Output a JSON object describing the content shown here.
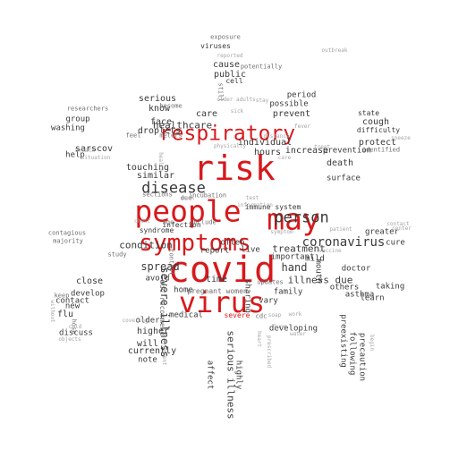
{
  "cloud": {
    "words": [
      {
        "text": "covid",
        "color": "red"
      },
      {
        "text": "virus",
        "color": "red"
      },
      {
        "text": "people",
        "color": "red"
      },
      {
        "text": "may",
        "color": "red"
      },
      {
        "text": "risk",
        "color": "red"
      },
      {
        "text": "symptoms",
        "color": "red"
      },
      {
        "text": "respiratory",
        "color": "red"
      },
      {
        "text": "disease",
        "color": "dark"
      },
      {
        "text": "person",
        "color": "dark"
      },
      {
        "text": "coronavirus",
        "color": "dark"
      },
      {
        "text": "spread",
        "color": "dark"
      },
      {
        "text": "severe illness",
        "color": "dark"
      },
      {
        "text": "serious illness",
        "color": "dark"
      },
      {
        "text": "healthcare",
        "color": "dark"
      },
      {
        "text": "condition",
        "color": "dark"
      },
      {
        "text": "hand",
        "color": "dark"
      },
      {
        "text": "illness due",
        "color": "dark"
      },
      {
        "text": "treatment",
        "color": "dark"
      },
      {
        "text": "prevent",
        "color": "dark"
      },
      {
        "text": "cough",
        "color": "dark"
      },
      {
        "text": "protect",
        "color": "dark"
      },
      {
        "text": "sarscov",
        "color": "dark"
      },
      {
        "text": "cause",
        "color": "dark"
      },
      {
        "text": "public",
        "color": "dark"
      },
      {
        "text": "care",
        "color": "dark"
      },
      {
        "text": "face",
        "color": "dark"
      },
      {
        "text": "touching",
        "color": "dark"
      },
      {
        "text": "close",
        "color": "dark"
      },
      {
        "text": "flu",
        "color": "dark"
      },
      {
        "text": "higher",
        "color": "dark"
      },
      {
        "text": "will",
        "color": "dark"
      },
      {
        "text": "currently",
        "color": "dark"
      },
      {
        "text": "time",
        "color": "dark"
      },
      {
        "text": "hours",
        "color": "dark"
      },
      {
        "text": "increase",
        "color": "dark"
      },
      {
        "text": "death",
        "color": "dark"
      },
      {
        "text": "individual",
        "color": "dark"
      },
      {
        "text": "droplets",
        "color": "dark"
      },
      {
        "text": "similar",
        "color": "dark"
      },
      {
        "text": "serious",
        "color": "dark"
      },
      {
        "text": "know",
        "color": "dark"
      },
      {
        "text": "period",
        "color": "dark"
      },
      {
        "text": "possible",
        "color": "dark"
      },
      {
        "text": "prevention",
        "color": "dark"
      },
      {
        "text": "surface",
        "color": "dark"
      },
      {
        "text": "important",
        "color": "dark"
      },
      {
        "text": "mild",
        "color": "dark"
      },
      {
        "text": "doctor",
        "color": "dark"
      },
      {
        "text": "others",
        "color": "dark"
      },
      {
        "text": "asthma",
        "color": "dark"
      },
      {
        "text": "greater",
        "color": "dark"
      },
      {
        "text": "cure",
        "color": "dark"
      },
      {
        "text": "taking",
        "color": "dark"
      },
      {
        "text": "learn",
        "color": "dark"
      },
      {
        "text": "develop",
        "color": "dark"
      },
      {
        "text": "group",
        "color": "dark"
      },
      {
        "text": "washing",
        "color": "dark"
      },
      {
        "text": "help",
        "color": "dark"
      },
      {
        "text": "contact",
        "color": "dark"
      },
      {
        "text": "new",
        "color": "dark"
      },
      {
        "text": "discuss",
        "color": "dark"
      },
      {
        "text": "older",
        "color": "dark"
      },
      {
        "text": "note",
        "color": "dark"
      },
      {
        "text": "affect",
        "color": "dark"
      },
      {
        "text": "highly",
        "color": "dark"
      },
      {
        "text": "developing",
        "color": "dark"
      },
      {
        "text": "preexisting",
        "color": "dark"
      },
      {
        "text": "following",
        "color": "dark"
      },
      {
        "text": "precaution",
        "color": "dark"
      },
      {
        "text": "family",
        "color": "dark"
      },
      {
        "text": "vary",
        "color": "dark"
      },
      {
        "text": "mouth",
        "color": "dark"
      },
      {
        "text": "sharing",
        "color": "dark"
      },
      {
        "text": "report",
        "color": "dark"
      },
      {
        "text": "live",
        "color": "dark"
      },
      {
        "text": "often",
        "color": "dark"
      },
      {
        "text": "home",
        "color": "dark"
      },
      {
        "text": "avoid",
        "color": "dark"
      },
      {
        "text": "medical",
        "color": "dark"
      },
      {
        "text": "syndrome",
        "color": "dark"
      },
      {
        "text": "infection",
        "color": "dark"
      },
      {
        "text": "state",
        "color": "dark"
      },
      {
        "text": "difficulty",
        "color": "dark"
      },
      {
        "text": "viruses",
        "color": "dark"
      },
      {
        "text": "cell",
        "color": "dark"
      },
      {
        "text": "exposure",
        "color": "mid"
      },
      {
        "text": "immune system",
        "color": "dark"
      },
      {
        "text": "pregnant women",
        "color": "mid"
      },
      {
        "text": "updates",
        "color": "mid"
      },
      {
        "text": "cdc recommend",
        "color": "mid"
      },
      {
        "text": "control",
        "color": "mid"
      },
      {
        "text": "study",
        "color": "mid"
      },
      {
        "text": "sections",
        "color": "mid"
      },
      {
        "text": "incubation",
        "color": "mid"
      },
      {
        "text": "age",
        "color": "mid"
      },
      {
        "text": "include",
        "color": "mid"
      },
      {
        "text": "become",
        "color": "mid"
      },
      {
        "text": "feel",
        "color": "mid"
      },
      {
        "text": "meters",
        "color": "mid"
      },
      {
        "text": "researchers",
        "color": "mid"
      },
      {
        "text": "contagious",
        "color": "mid"
      },
      {
        "text": "majority",
        "color": "mid"
      },
      {
        "text": "keep",
        "color": "mid"
      },
      {
        "text": "hose",
        "color": "mid"
      },
      {
        "text": "cdc",
        "color": "mid"
      },
      {
        "text": "identified",
        "color": "mid"
      },
      {
        "text": "potentially",
        "color": "mid"
      },
      {
        "text": "reported",
        "color": "light"
      },
      {
        "text": "still",
        "color": "mid"
      },
      {
        "text": "due",
        "color": "mid"
      },
      {
        "text": "chest",
        "color": "light"
      },
      {
        "text": "heart",
        "color": "light"
      },
      {
        "text": "severe",
        "color": "red"
      },
      {
        "text": "fever",
        "color": "light"
      },
      {
        "text": "breath",
        "color": "light"
      },
      {
        "text": "frequent",
        "color": "light"
      },
      {
        "text": "prescribed",
        "color": "light"
      },
      {
        "text": "begin",
        "color": "light"
      },
      {
        "text": "situation",
        "color": "light"
      },
      {
        "text": "covering",
        "color": "light"
      },
      {
        "text": "without",
        "color": "light"
      },
      {
        "text": "cold",
        "color": "light"
      },
      {
        "text": "objects",
        "color": "light"
      },
      {
        "text": "health",
        "color": "light"
      },
      {
        "text": "physically",
        "color": "light"
      },
      {
        "text": "outbreak",
        "color": "light"
      },
      {
        "text": "distance",
        "color": "light"
      },
      {
        "text": "older adults",
        "color": "light"
      },
      {
        "text": "sneeze",
        "color": "light"
      },
      {
        "text": "contact",
        "color": "light"
      },
      {
        "text": "center",
        "color": "light"
      },
      {
        "text": "symptom",
        "color": "light"
      },
      {
        "text": "treat",
        "color": "light"
      },
      {
        "text": "care",
        "color": "light"
      },
      {
        "text": "test",
        "color": "light"
      },
      {
        "text": "sick",
        "color": "light"
      },
      {
        "text": "stay",
        "color": "light"
      },
      {
        "text": "lung",
        "color": "light"
      },
      {
        "text": "mask",
        "color": "light"
      },
      {
        "text": "soap",
        "color": "light"
      },
      {
        "text": "water",
        "color": "light"
      },
      {
        "text": "work",
        "color": "light"
      },
      {
        "text": "information",
        "color": "light"
      },
      {
        "text": "patient",
        "color": "light"
      },
      {
        "text": "vaccine",
        "color": "light"
      }
    ]
  }
}
